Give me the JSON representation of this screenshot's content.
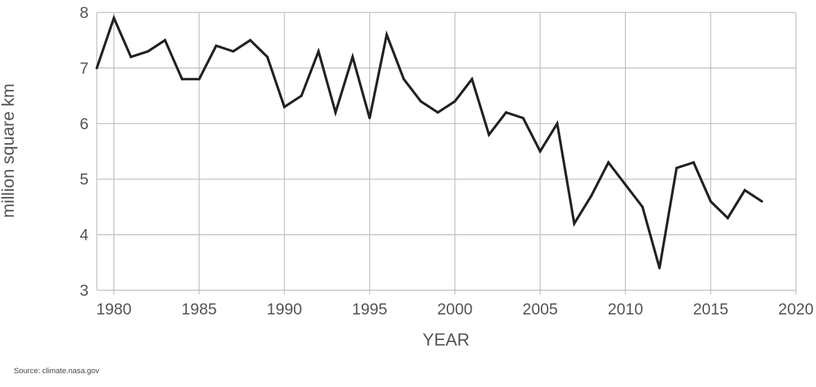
{
  "chart_data": {
    "type": "line",
    "xlabel": "YEAR",
    "ylabel": "million square km",
    "xlim": [
      1979,
      2020
    ],
    "ylim": [
      3,
      8
    ],
    "x_ticks": [
      1980,
      1985,
      1990,
      1995,
      2000,
      2005,
      2010,
      2015,
      2020
    ],
    "y_ticks": [
      3,
      4,
      5,
      6,
      7,
      8
    ],
    "grid": true,
    "line_color": "#222222",
    "grid_color": "#b9b9b9",
    "series": [
      {
        "x": [
          1979,
          1980,
          1981,
          1982,
          1983,
          1984,
          1985,
          1986,
          1987,
          1988,
          1989,
          1990,
          1991,
          1992,
          1993,
          1994,
          1995,
          1996,
          1997,
          1998,
          1999,
          2000,
          2001,
          2002,
          2003,
          2004,
          2005,
          2006,
          2007,
          2008,
          2009,
          2010,
          2011,
          2012,
          2013,
          2014,
          2015,
          2016,
          2017,
          2018
        ],
        "values": [
          7.0,
          7.9,
          7.2,
          7.3,
          7.5,
          6.8,
          6.8,
          7.4,
          7.3,
          7.5,
          7.2,
          6.3,
          6.5,
          7.3,
          6.2,
          7.2,
          6.1,
          7.6,
          6.8,
          6.4,
          6.2,
          6.4,
          6.8,
          5.8,
          6.2,
          6.1,
          5.5,
          6.0,
          4.2,
          4.7,
          5.3,
          4.9,
          4.5,
          3.4,
          5.2,
          5.3,
          4.6,
          4.3,
          4.8,
          4.6
        ]
      }
    ]
  },
  "source": "Source: climate.nasa.gov"
}
